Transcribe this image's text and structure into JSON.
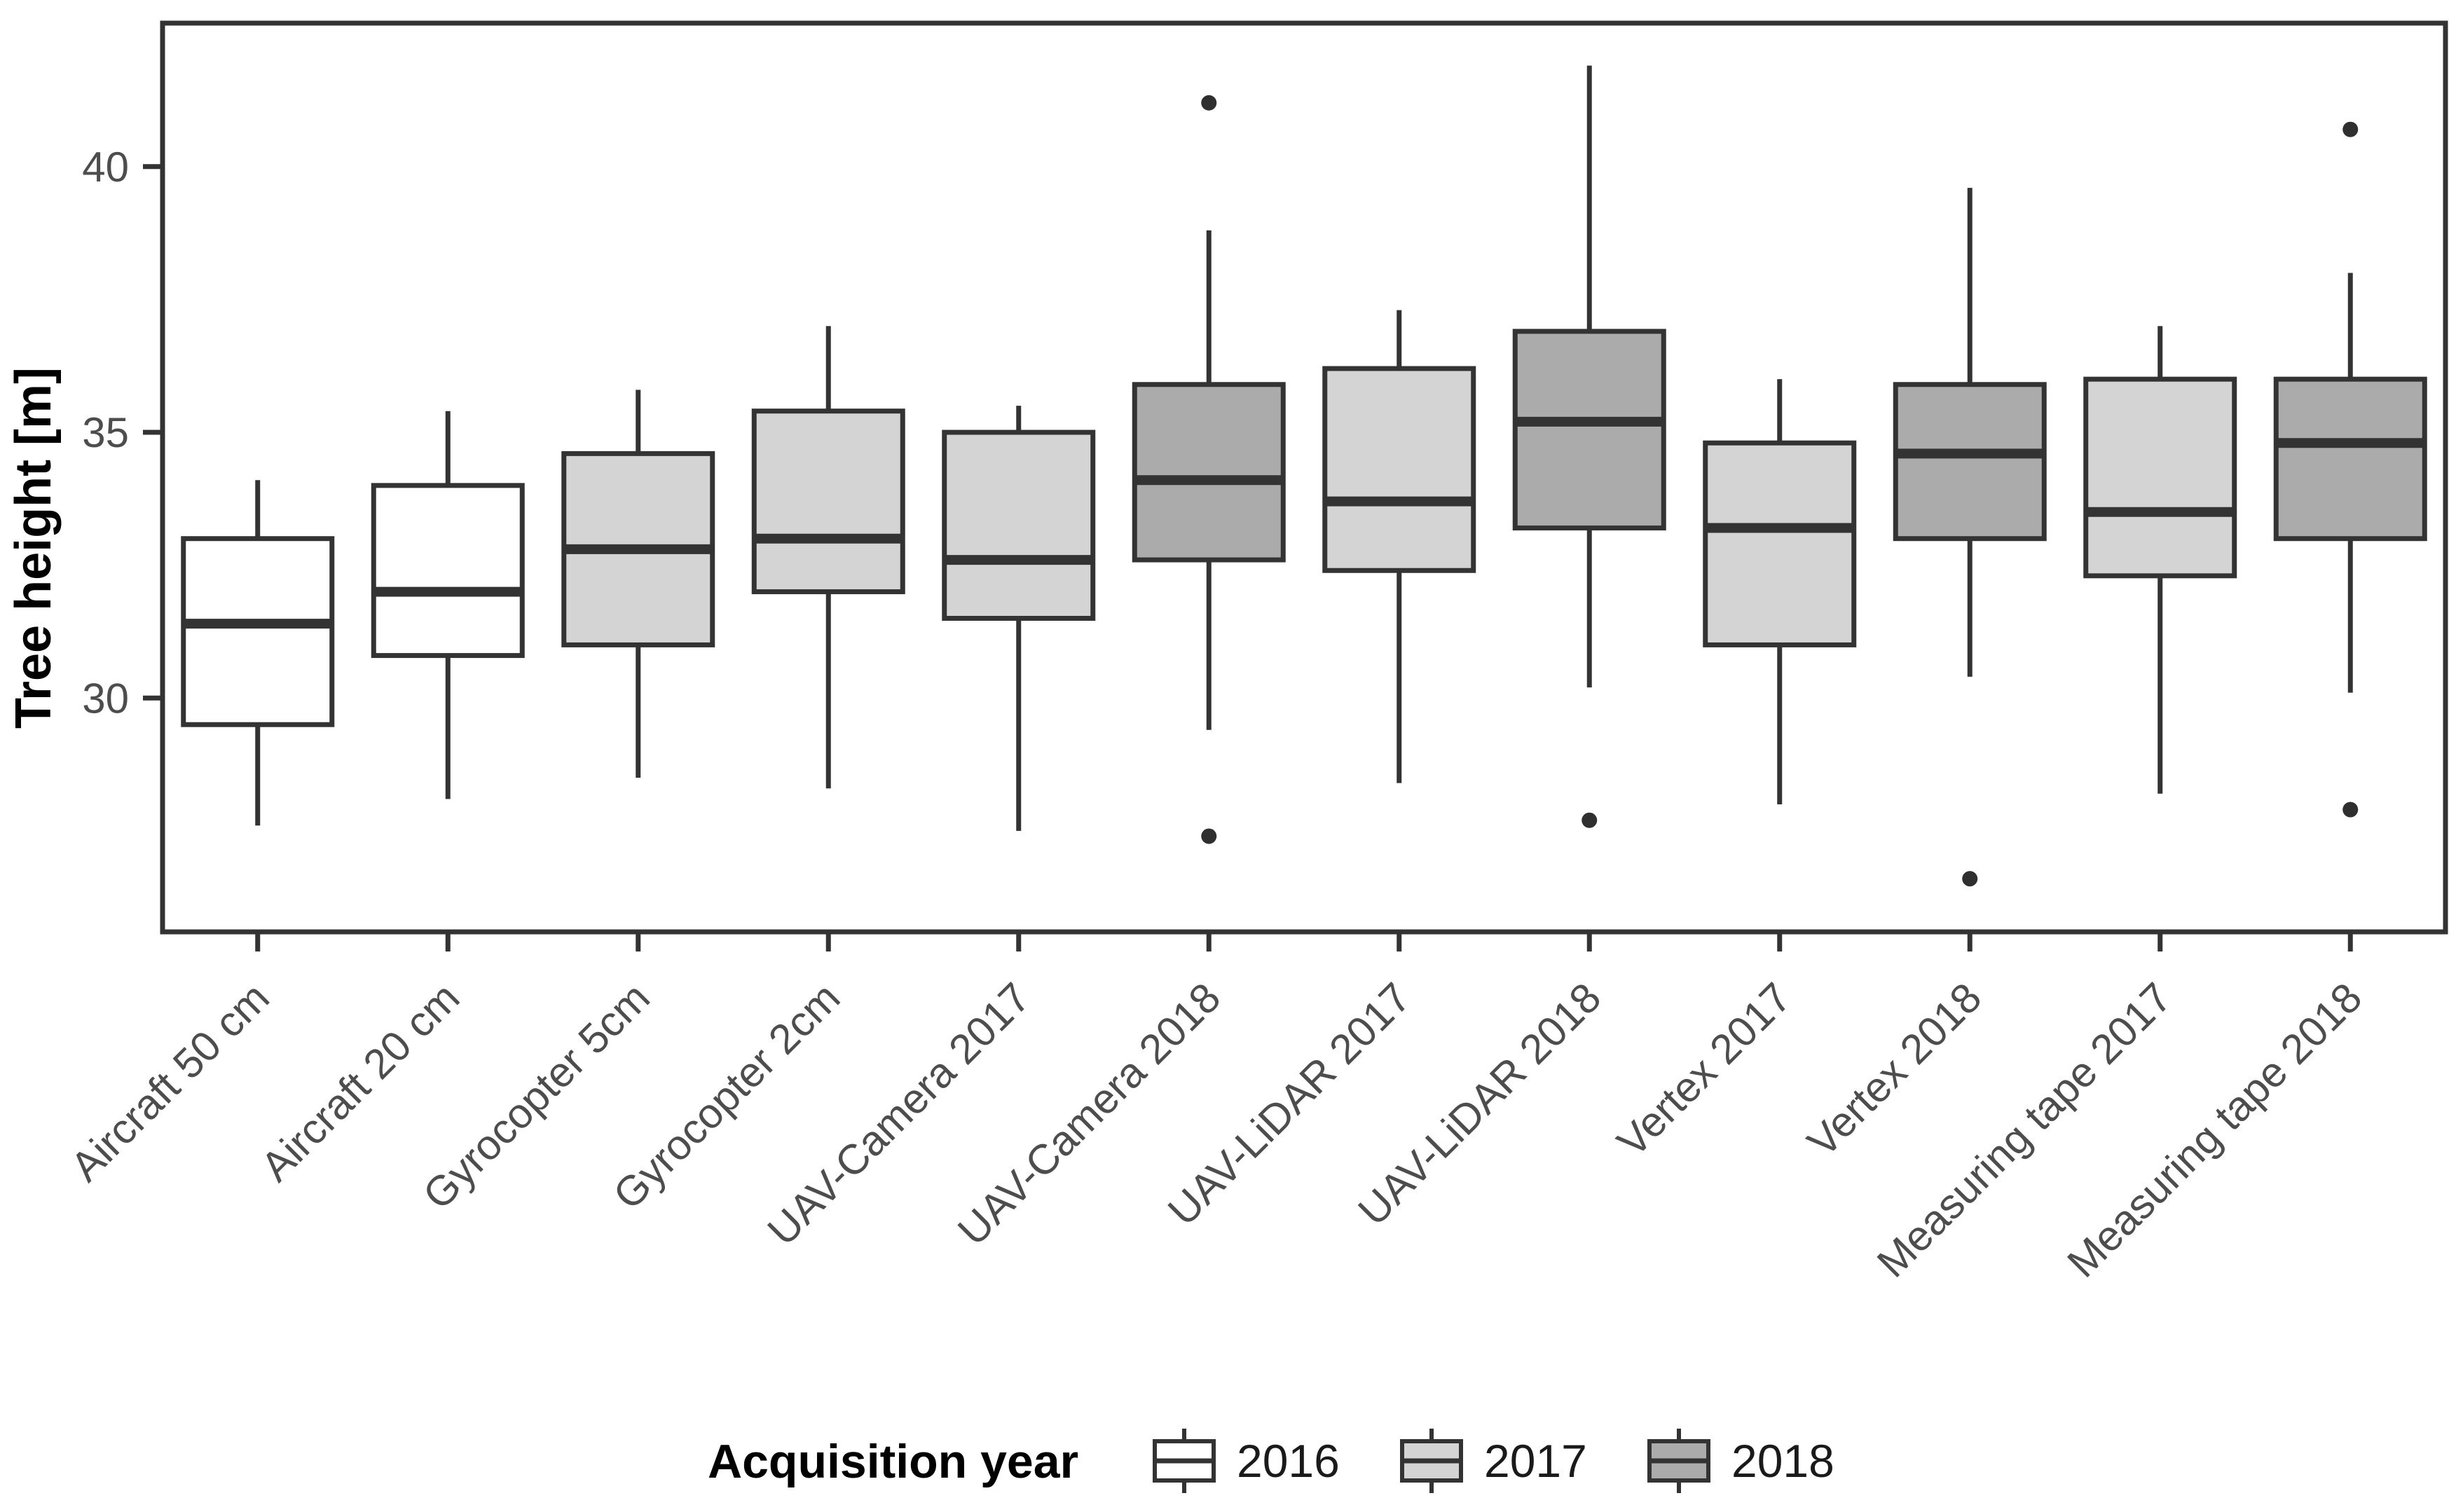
{
  "figure": {
    "background": "#ffffff"
  },
  "y_axis": {
    "title": "Tree height [m]",
    "ticks": [
      30,
      35,
      40
    ],
    "tick_labels": [
      "30",
      "35",
      "40"
    ],
    "range": [
      25.6,
      42.7
    ]
  },
  "legend": {
    "title": "Acquisition year",
    "position": "bottom",
    "items": [
      {
        "label": "2016",
        "fill": "#ffffff"
      },
      {
        "label": "2017",
        "fill": "#d4d4d4"
      },
      {
        "label": "2018",
        "fill": "#ababab"
      }
    ]
  },
  "colors": {
    "panel_border": "#333333",
    "box_stroke": "#333333",
    "median": "#333333",
    "whisker": "#333333",
    "outlier": "#2f2f2f",
    "axis_text": "#4d4d4d",
    "title_text": "#000000",
    "fill_2016": "#ffffff",
    "fill_2017": "#d4d4d4",
    "fill_2018": "#ababab"
  },
  "chart_data": {
    "type": "boxplot",
    "title": "",
    "xlabel": "",
    "ylabel": "Tree height [m]",
    "ylim": [
      25.6,
      42.7
    ],
    "yticks": [
      30,
      35,
      40
    ],
    "grid": false,
    "legend_position": "bottom",
    "legend_title": "Acquisition year",
    "categories": [
      "Aircraft 50 cm",
      "Aircraft 20 cm",
      "Gyrocopter 5cm",
      "Gyrocopter 2cm",
      "UAV-Camera 2017",
      "UAV-Camera 2018",
      "UAV-LiDAR 2017",
      "UAV-LiDAR 2018",
      "Vertex 2017",
      "Vertex 2018",
      "Measuring tape 2017",
      "Measuring tape 2018"
    ],
    "series": [
      {
        "id": "aircraft-50-cm",
        "label": "Aircraft 50 cm",
        "year": "2016",
        "fill": "#ffffff",
        "whisker_low": 27.6,
        "q1": 29.5,
        "median": 31.4,
        "q3": 33.0,
        "whisker_high": 34.1,
        "outliers": []
      },
      {
        "id": "aircraft-20-cm",
        "label": "Aircraft 20 cm",
        "year": "2016",
        "fill": "#ffffff",
        "whisker_low": 28.1,
        "q1": 30.8,
        "median": 32.0,
        "q3": 34.0,
        "whisker_high": 35.4,
        "outliers": []
      },
      {
        "id": "gyrocopter-5cm",
        "label": "Gyrocopter 5cm",
        "year": "2017",
        "fill": "#d4d4d4",
        "whisker_low": 28.5,
        "q1": 31.0,
        "median": 32.8,
        "q3": 34.6,
        "whisker_high": 35.8,
        "outliers": []
      },
      {
        "id": "gyrocopter-2cm",
        "label": "Gyrocopter 2cm",
        "year": "2017",
        "fill": "#d4d4d4",
        "whisker_low": 28.3,
        "q1": 32.0,
        "median": 33.0,
        "q3": 35.4,
        "whisker_high": 37.0,
        "outliers": []
      },
      {
        "id": "uav-camera-2017",
        "label": "UAV-Camera 2017",
        "year": "2017",
        "fill": "#d4d4d4",
        "whisker_low": 27.5,
        "q1": 31.5,
        "median": 32.6,
        "q3": 35.0,
        "whisker_high": 35.5,
        "outliers": []
      },
      {
        "id": "uav-camera-2018",
        "label": "UAV-Camera 2018",
        "year": "2018",
        "fill": "#ababab",
        "whisker_low": 29.4,
        "q1": 32.6,
        "median": 34.1,
        "q3": 35.9,
        "whisker_high": 38.8,
        "outliers": [
          41.2,
          27.4
        ]
      },
      {
        "id": "uav-lidar-2017",
        "label": "UAV-LiDAR 2017",
        "year": "2017",
        "fill": "#d4d4d4",
        "whisker_low": 28.4,
        "q1": 32.4,
        "median": 33.7,
        "q3": 36.2,
        "whisker_high": 37.3,
        "outliers": []
      },
      {
        "id": "uav-lidar-2018",
        "label": "UAV-LiDAR 2018",
        "year": "2018",
        "fill": "#ababab",
        "whisker_low": 30.2,
        "q1": 33.2,
        "median": 35.2,
        "q3": 36.9,
        "whisker_high": 41.9,
        "outliers": [
          27.7
        ]
      },
      {
        "id": "vertex-2017",
        "label": "Vertex 2017",
        "year": "2017",
        "fill": "#d4d4d4",
        "whisker_low": 28.0,
        "q1": 31.0,
        "median": 33.2,
        "q3": 34.8,
        "whisker_high": 36.0,
        "outliers": []
      },
      {
        "id": "vertex-2018",
        "label": "Vertex 2018",
        "year": "2018",
        "fill": "#ababab",
        "whisker_low": 30.4,
        "q1": 33.0,
        "median": 34.6,
        "q3": 35.9,
        "whisker_high": 39.6,
        "outliers": [
          26.6
        ]
      },
      {
        "id": "measuring-tape-2017",
        "label": "Measuring tape 2017",
        "year": "2017",
        "fill": "#d4d4d4",
        "whisker_low": 28.2,
        "q1": 32.3,
        "median": 33.5,
        "q3": 36.0,
        "whisker_high": 37.0,
        "outliers": []
      },
      {
        "id": "measuring-tape-2018",
        "label": "Measuring tape 2018",
        "year": "2018",
        "fill": "#ababab",
        "whisker_low": 30.1,
        "q1": 33.0,
        "median": 34.8,
        "q3": 36.0,
        "whisker_high": 38.0,
        "outliers": [
          40.7,
          27.9
        ]
      }
    ]
  }
}
